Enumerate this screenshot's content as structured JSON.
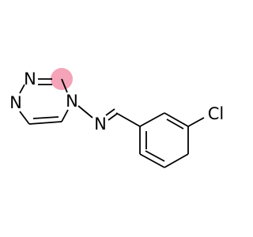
{
  "atoms": [
    {
      "label": "N"
    },
    {
      "label": "N"
    },
    {
      "label": "N"
    },
    {
      "label": "N"
    },
    {
      "label": "Cl"
    }
  ]
}
